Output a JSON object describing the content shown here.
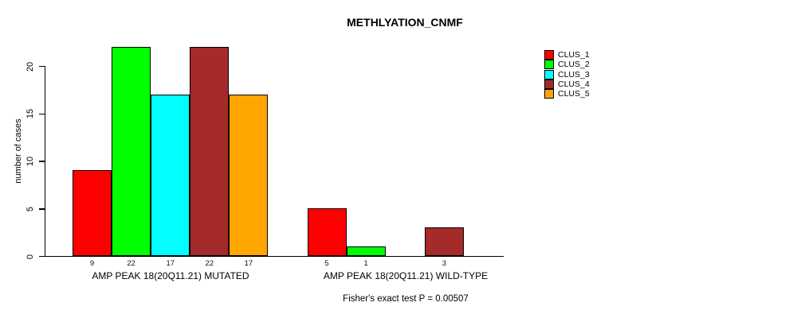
{
  "title": "METHLYATION_CNMF",
  "chart_data": {
    "type": "bar",
    "title": "METHLYATION_CNMF",
    "xlabel": "",
    "ylabel": "number of cases",
    "ylim": [
      0,
      22
    ],
    "yticks": [
      0,
      5,
      10,
      15,
      20
    ],
    "grid": false,
    "legend_position": "right",
    "series": [
      {
        "name": "CLUS_1",
        "color": "#FF0000",
        "values": [
          9,
          5
        ]
      },
      {
        "name": "CLUS_2",
        "color": "#00FF00",
        "values": [
          22,
          1
        ]
      },
      {
        "name": "CLUS_3",
        "color": "#00FFFF",
        "values": [
          17,
          0
        ]
      },
      {
        "name": "CLUS_4",
        "color": "#A52A2A",
        "values": [
          22,
          3
        ]
      },
      {
        "name": "CLUS_5",
        "color": "#FFA500",
        "values": [
          17,
          0
        ]
      }
    ],
    "categories": [
      "AMP PEAK 18(20Q11.21) MUTATED",
      "AMP PEAK 18(20Q11.21) WILD-TYPE"
    ],
    "groups": [
      {
        "label": "AMP PEAK 18(20Q11.21) MUTATED",
        "values": [
          9,
          22,
          17,
          22,
          17
        ],
        "bar_labels": [
          "9",
          "22",
          "17",
          "22",
          "17"
        ]
      },
      {
        "label": "AMP PEAK 18(20Q11.21) WILD-TYPE",
        "values": [
          5,
          1,
          0,
          3,
          0
        ],
        "bar_labels": [
          "5",
          "1",
          "",
          "3",
          ""
        ]
      }
    ],
    "footnote": "Fisher's exact test P = 0.00507",
    "axis_color": "#000000",
    "background_color": "#FFFFFF"
  }
}
